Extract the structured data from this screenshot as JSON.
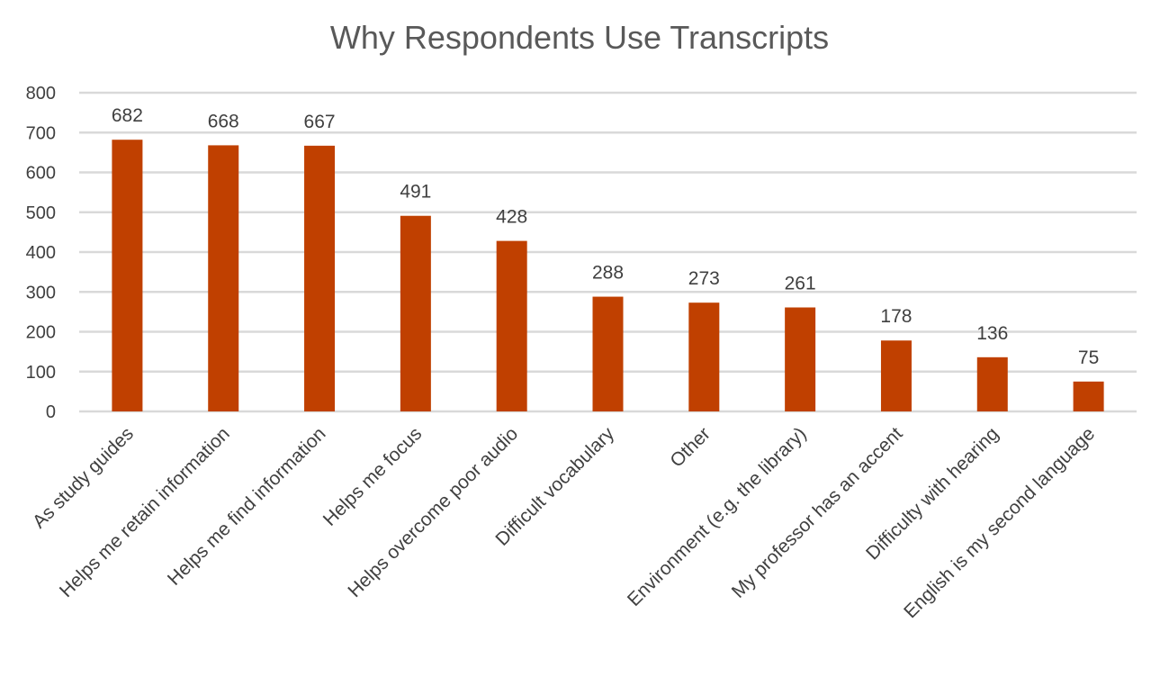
{
  "chart_data": {
    "type": "bar",
    "title": "Why Respondents Use Transcripts",
    "xlabel": "",
    "ylabel": "",
    "ylim": [
      0,
      800
    ],
    "yticks": [
      0,
      100,
      200,
      300,
      400,
      500,
      600,
      700,
      800
    ],
    "grid": true,
    "legend": "none",
    "bar_color": "#C04000",
    "categories": [
      "As study guides",
      "Helps me retain information",
      "Helps me find information",
      "Helps me focus",
      "Helps overcome poor audio",
      "Difficult vocabulary",
      "Other",
      "Environment (e.g. the library)",
      "My professor has an accent",
      "Difficulty with hearing",
      "English is my second language"
    ],
    "values": [
      682,
      668,
      667,
      491,
      428,
      288,
      273,
      261,
      178,
      136,
      75
    ],
    "data_labels": [
      "682",
      "668",
      "667",
      "491",
      "428",
      "288",
      "273",
      "261",
      "178",
      "136",
      "75"
    ]
  }
}
